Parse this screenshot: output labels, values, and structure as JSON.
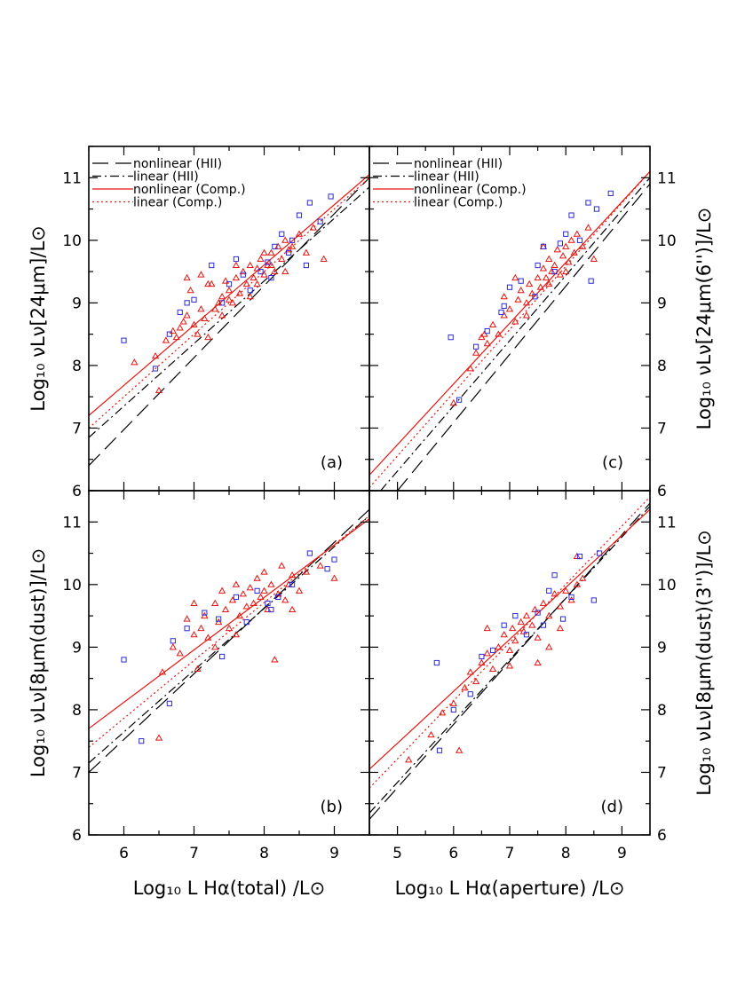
{
  "colors": {
    "hii": "#000000",
    "comp": "#e8140f",
    "triangles": "#e8140f",
    "squares": "#2b2bd8"
  },
  "legend": [
    {
      "label": "nonlinear (HII)",
      "style": "long-dash",
      "color": "#000000"
    },
    {
      "label": "linear (HII)",
      "style": "dash-dot",
      "color": "#000000"
    },
    {
      "label": "nonlinear (Comp.)",
      "style": "solid",
      "color": "#e8140f"
    },
    {
      "label": "linear (Comp.)",
      "style": "dotted",
      "color": "#e8140f"
    }
  ],
  "axes": {
    "y_top_left": "Log₁₀  νLν[24μm]/L⊙",
    "y_bottom_left": "Log₁₀  νLν[8μm(dust)]/L⊙",
    "y_top_right": "Log₁₀  νLν[24μm(6'')]/L⊙",
    "y_bottom_right": "Log₁₀  νLν[8μm(dust)(3'')]/L⊙",
    "x_left": "Log₁₀  L Hα(total) /L⊙",
    "x_right": "Log₁₀  L Hα(aperture) /L⊙"
  },
  "chart_data": [
    {
      "type": "scatter",
      "panel": "(a)",
      "xlim": [
        5.5,
        9.5
      ],
      "ylim": [
        6,
        11.5
      ],
      "xticks": [
        6,
        7,
        8,
        9
      ],
      "yticks": [
        6,
        7,
        8,
        9,
        10,
        11
      ],
      "lines": [
        {
          "name": "nonlinear (HII)",
          "points": [
            [
              5.5,
              6.4
            ],
            [
              9.5,
              11.0
            ]
          ]
        },
        {
          "name": "linear (HII)",
          "points": [
            [
              5.5,
              6.85
            ],
            [
              9.5,
              10.85
            ]
          ]
        },
        {
          "name": "nonlinear (Comp.)",
          "points": [
            [
              5.5,
              7.2
            ],
            [
              9.5,
              11.05
            ]
          ]
        },
        {
          "name": "linear (Comp.)",
          "points": [
            [
              5.5,
              7.0
            ],
            [
              9.5,
              11.0
            ]
          ]
        }
      ],
      "triangles": [
        [
          6.15,
          8.05
        ],
        [
          6.45,
          8.15
        ],
        [
          6.6,
          8.4
        ],
        [
          6.7,
          8.55
        ],
        [
          6.75,
          8.45
        ],
        [
          6.8,
          8.6
        ],
        [
          6.85,
          8.7
        ],
        [
          6.9,
          8.8
        ],
        [
          6.95,
          9.2
        ],
        [
          7.0,
          8.65
        ],
        [
          7.05,
          8.5
        ],
        [
          7.1,
          8.9
        ],
        [
          7.15,
          8.75
        ],
        [
          7.2,
          8.45
        ],
        [
          7.25,
          9.3
        ],
        [
          7.3,
          8.9
        ],
        [
          7.35,
          9.0
        ],
        [
          7.4,
          9.1
        ],
        [
          7.45,
          9.35
        ],
        [
          7.5,
          9.2
        ],
        [
          7.55,
          9.0
        ],
        [
          7.6,
          9.4
        ],
        [
          7.65,
          9.15
        ],
        [
          7.7,
          9.5
        ],
        [
          7.75,
          9.3
        ],
        [
          7.8,
          9.6
        ],
        [
          7.85,
          9.4
        ],
        [
          7.9,
          9.55
        ],
        [
          7.95,
          9.7
        ],
        [
          8.0,
          9.45
        ],
        [
          8.05,
          9.6
        ],
        [
          8.1,
          9.8
        ],
        [
          8.15,
          9.5
        ],
        [
          8.2,
          9.9
        ],
        [
          8.25,
          9.7
        ],
        [
          8.3,
          10.0
        ],
        [
          8.35,
          9.85
        ],
        [
          8.4,
          9.9
        ],
        [
          8.5,
          10.1
        ],
        [
          8.6,
          9.8
        ],
        [
          8.7,
          10.2
        ],
        [
          8.85,
          9.7
        ],
        [
          6.9,
          9.4
        ],
        [
          7.2,
          9.3
        ],
        [
          7.4,
          8.8
        ],
        [
          7.6,
          9.6
        ],
        [
          7.9,
          9.3
        ],
        [
          8.1,
          9.6
        ],
        [
          8.3,
          9.5
        ],
        [
          6.5,
          7.6
        ],
        [
          7.1,
          9.45
        ],
        [
          7.5,
          9.05
        ],
        [
          7.8,
          9.1
        ],
        [
          8.0,
          9.8
        ]
      ],
      "squares": [
        [
          6.0,
          8.4
        ],
        [
          6.45,
          7.95
        ],
        [
          6.65,
          8.5
        ],
        [
          6.8,
          8.85
        ],
        [
          7.0,
          9.05
        ],
        [
          7.25,
          9.6
        ],
        [
          7.5,
          9.3
        ],
        [
          7.6,
          9.7
        ],
        [
          7.8,
          9.2
        ],
        [
          7.95,
          9.5
        ],
        [
          8.05,
          9.65
        ],
        [
          8.15,
          9.9
        ],
        [
          8.25,
          10.1
        ],
        [
          8.35,
          9.8
        ],
        [
          8.5,
          10.4
        ],
        [
          8.65,
          10.6
        ],
        [
          8.8,
          10.3
        ],
        [
          8.95,
          10.7
        ],
        [
          7.4,
          9.0
        ],
        [
          7.7,
          9.45
        ],
        [
          8.1,
          9.4
        ],
        [
          8.4,
          10.0
        ],
        [
          6.9,
          9.0
        ],
        [
          8.6,
          9.6
        ]
      ]
    },
    {
      "type": "scatter",
      "panel": "(b)",
      "xlim": [
        5.5,
        9.5
      ],
      "ylim": [
        6,
        11.5
      ],
      "xticks": [
        6,
        7,
        8,
        9
      ],
      "yticks": [
        6,
        7,
        8,
        9,
        10,
        11
      ],
      "lines": [
        {
          "name": "nonlinear (HII)",
          "points": [
            [
              5.5,
              7.0
            ],
            [
              9.5,
              11.2
            ]
          ]
        },
        {
          "name": "linear (HII)",
          "points": [
            [
              5.5,
              7.15
            ],
            [
              9.5,
              11.1
            ]
          ]
        },
        {
          "name": "nonlinear (Comp.)",
          "points": [
            [
              5.5,
              7.7
            ],
            [
              9.5,
              11.05
            ]
          ]
        },
        {
          "name": "linear (Comp.)",
          "points": [
            [
              5.5,
              7.4
            ],
            [
              9.5,
              11.1
            ]
          ]
        }
      ],
      "triangles": [
        [
          6.5,
          7.55
        ],
        [
          6.55,
          8.6
        ],
        [
          6.7,
          9.0
        ],
        [
          6.8,
          8.9
        ],
        [
          6.9,
          9.45
        ],
        [
          7.0,
          9.2
        ],
        [
          7.05,
          8.65
        ],
        [
          7.1,
          9.3
        ],
        [
          7.15,
          9.5
        ],
        [
          7.2,
          9.15
        ],
        [
          7.3,
          9.7
        ],
        [
          7.35,
          9.4
        ],
        [
          7.4,
          9.9
        ],
        [
          7.45,
          9.6
        ],
        [
          7.5,
          9.3
        ],
        [
          7.55,
          9.75
        ],
        [
          7.6,
          10.0
        ],
        [
          7.65,
          9.5
        ],
        [
          7.7,
          9.85
        ],
        [
          7.75,
          9.65
        ],
        [
          7.8,
          9.95
        ],
        [
          7.85,
          9.7
        ],
        [
          7.9,
          10.1
        ],
        [
          7.95,
          9.8
        ],
        [
          8.0,
          9.9
        ],
        [
          8.05,
          9.6
        ],
        [
          8.1,
          10.0
        ],
        [
          8.15,
          8.8
        ],
        [
          8.2,
          9.85
        ],
        [
          8.25,
          10.3
        ],
        [
          8.3,
          9.75
        ],
        [
          8.35,
          10.0
        ],
        [
          8.4,
          10.15
        ],
        [
          8.5,
          9.9
        ],
        [
          8.6,
          10.2
        ],
        [
          8.8,
          10.3
        ],
        [
          9.0,
          10.1
        ],
        [
          7.0,
          9.7
        ],
        [
          7.3,
          9.0
        ],
        [
          7.6,
          9.2
        ],
        [
          8.0,
          10.2
        ],
        [
          8.4,
          9.6
        ]
      ],
      "squares": [
        [
          6.0,
          8.8
        ],
        [
          6.25,
          7.5
        ],
        [
          6.65,
          8.1
        ],
        [
          6.7,
          9.1
        ],
        [
          6.9,
          9.3
        ],
        [
          7.15,
          9.55
        ],
        [
          7.35,
          9.45
        ],
        [
          7.6,
          9.8
        ],
        [
          7.75,
          9.4
        ],
        [
          7.9,
          9.9
        ],
        [
          8.05,
          9.7
        ],
        [
          8.2,
          9.8
        ],
        [
          8.4,
          10.0
        ],
        [
          8.65,
          10.5
        ],
        [
          8.9,
          10.25
        ],
        [
          9.0,
          10.4
        ],
        [
          7.4,
          8.85
        ],
        [
          8.1,
          9.6
        ]
      ]
    },
    {
      "type": "scatter",
      "panel": "(c)",
      "xlim": [
        4.5,
        9.5
      ],
      "ylim": [
        6,
        11.5
      ],
      "xticks": [
        5,
        6,
        7,
        8,
        9
      ],
      "yticks": [
        6,
        7,
        8,
        9,
        10,
        11
      ],
      "lines": [
        {
          "name": "nonlinear (HII)",
          "points": [
            [
              5.0,
              6.0
            ],
            [
              9.5,
              10.9
            ]
          ]
        },
        {
          "name": "linear (HII)",
          "points": [
            [
              4.7,
              6.0
            ],
            [
              9.5,
              11.0
            ]
          ]
        },
        {
          "name": "nonlinear (Comp.)",
          "points": [
            [
              4.5,
              6.25
            ],
            [
              9.5,
              11.1
            ]
          ]
        },
        {
          "name": "linear (Comp.)",
          "points": [
            [
              4.5,
              6.05
            ],
            [
              9.5,
              11.1
            ]
          ]
        }
      ],
      "triangles": [
        [
          6.0,
          7.4
        ],
        [
          6.3,
          7.95
        ],
        [
          6.4,
          8.2
        ],
        [
          6.5,
          8.45
        ],
        [
          6.6,
          8.35
        ],
        [
          6.7,
          8.65
        ],
        [
          6.8,
          8.5
        ],
        [
          6.9,
          8.8
        ],
        [
          7.0,
          8.9
        ],
        [
          7.1,
          8.7
        ],
        [
          7.15,
          9.05
        ],
        [
          7.2,
          9.2
        ],
        [
          7.3,
          9.0
        ],
        [
          7.35,
          9.3
        ],
        [
          7.4,
          9.15
        ],
        [
          7.5,
          9.4
        ],
        [
          7.55,
          9.25
        ],
        [
          7.6,
          9.55
        ],
        [
          7.65,
          9.4
        ],
        [
          7.7,
          9.7
        ],
        [
          7.75,
          9.5
        ],
        [
          7.8,
          9.6
        ],
        [
          7.85,
          9.85
        ],
        [
          7.9,
          9.45
        ],
        [
          7.95,
          9.75
        ],
        [
          8.0,
          9.9
        ],
        [
          8.05,
          9.65
        ],
        [
          8.1,
          10.0
        ],
        [
          8.15,
          9.8
        ],
        [
          8.2,
          10.1
        ],
        [
          8.3,
          9.9
        ],
        [
          8.4,
          10.2
        ],
        [
          8.5,
          9.7
        ],
        [
          6.9,
          9.1
        ],
        [
          7.3,
          8.8
        ],
        [
          7.7,
          9.3
        ],
        [
          8.0,
          9.5
        ],
        [
          6.55,
          8.5
        ],
        [
          7.1,
          9.4
        ],
        [
          7.6,
          9.9
        ]
      ],
      "squares": [
        [
          5.95,
          8.45
        ],
        [
          6.1,
          7.45
        ],
        [
          6.4,
          8.3
        ],
        [
          6.6,
          8.55
        ],
        [
          6.85,
          8.85
        ],
        [
          7.0,
          9.25
        ],
        [
          7.2,
          9.35
        ],
        [
          7.45,
          9.1
        ],
        [
          7.6,
          9.9
        ],
        [
          7.8,
          9.5
        ],
        [
          7.9,
          9.95
        ],
        [
          8.0,
          10.1
        ],
        [
          8.1,
          10.4
        ],
        [
          8.25,
          10.0
        ],
        [
          8.4,
          10.6
        ],
        [
          8.55,
          10.5
        ],
        [
          8.8,
          10.75
        ],
        [
          8.45,
          9.35
        ],
        [
          6.9,
          8.95
        ],
        [
          7.5,
          9.6
        ]
      ]
    },
    {
      "type": "scatter",
      "panel": "(d)",
      "xlim": [
        4.5,
        9.5
      ],
      "ylim": [
        6,
        11.5
      ],
      "xticks": [
        5,
        6,
        7,
        8,
        9
      ],
      "yticks": [
        6,
        7,
        8,
        9,
        10,
        11
      ],
      "lines": [
        {
          "name": "nonlinear (HII)",
          "points": [
            [
              4.5,
              6.25
            ],
            [
              9.5,
              11.3
            ]
          ]
        },
        {
          "name": "linear (HII)",
          "points": [
            [
              4.5,
              6.35
            ],
            [
              9.5,
              11.25
            ]
          ]
        },
        {
          "name": "nonlinear (Comp.)",
          "points": [
            [
              4.5,
              7.05
            ],
            [
              9.5,
              11.2
            ]
          ]
        },
        {
          "name": "linear (Comp.)",
          "points": [
            [
              4.5,
              6.75
            ],
            [
              9.5,
              11.4
            ]
          ]
        }
      ],
      "triangles": [
        [
          5.2,
          7.2
        ],
        [
          5.6,
          7.6
        ],
        [
          5.8,
          7.95
        ],
        [
          6.0,
          8.1
        ],
        [
          6.1,
          7.35
        ],
        [
          6.2,
          8.35
        ],
        [
          6.3,
          8.6
        ],
        [
          6.4,
          8.45
        ],
        [
          6.5,
          8.75
        ],
        [
          6.6,
          8.9
        ],
        [
          6.7,
          8.65
        ],
        [
          6.8,
          9.0
        ],
        [
          6.9,
          9.2
        ],
        [
          7.0,
          8.95
        ],
        [
          7.05,
          9.3
        ],
        [
          7.1,
          9.1
        ],
        [
          7.2,
          9.4
        ],
        [
          7.25,
          9.25
        ],
        [
          7.3,
          9.5
        ],
        [
          7.4,
          9.35
        ],
        [
          7.45,
          9.6
        ],
        [
          7.5,
          9.15
        ],
        [
          7.6,
          9.7
        ],
        [
          7.7,
          9.5
        ],
        [
          7.8,
          9.85
        ],
        [
          7.9,
          9.65
        ],
        [
          8.0,
          9.9
        ],
        [
          8.1,
          9.75
        ],
        [
          8.2,
          10.0
        ],
        [
          8.3,
          10.1
        ],
        [
          7.5,
          8.75
        ],
        [
          7.7,
          9.0
        ],
        [
          6.6,
          9.3
        ],
        [
          7.0,
          8.7
        ],
        [
          7.9,
          9.3
        ],
        [
          8.2,
          10.45
        ]
      ],
      "squares": [
        [
          5.7,
          8.75
        ],
        [
          5.75,
          7.35
        ],
        [
          6.0,
          8.0
        ],
        [
          6.5,
          8.85
        ],
        [
          6.7,
          8.95
        ],
        [
          6.9,
          9.35
        ],
        [
          7.1,
          9.5
        ],
        [
          7.3,
          9.2
        ],
        [
          7.5,
          9.55
        ],
        [
          7.7,
          9.9
        ],
        [
          7.8,
          10.15
        ],
        [
          7.95,
          9.45
        ],
        [
          8.1,
          9.8
        ],
        [
          8.25,
          10.45
        ],
        [
          8.5,
          9.75
        ],
        [
          8.6,
          10.5
        ],
        [
          6.3,
          8.25
        ],
        [
          7.6,
          9.35
        ]
      ]
    }
  ]
}
